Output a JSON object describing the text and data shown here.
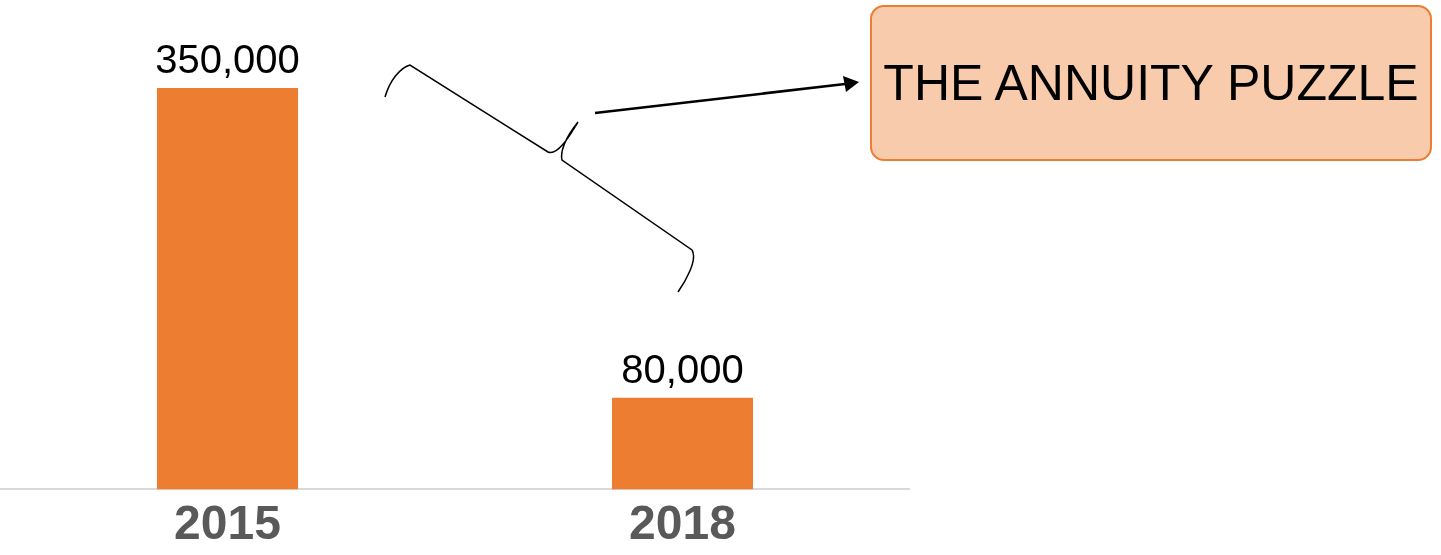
{
  "chart_data": {
    "type": "bar",
    "categories": [
      "2015",
      "2018"
    ],
    "values": [
      350000,
      80000
    ],
    "color": "#ed7d31",
    "value_labels": [
      "350,000",
      "80,000"
    ],
    "grid": false,
    "legend": false,
    "annotations": [
      "THE ANNUITY PUZZLE"
    ]
  }
}
